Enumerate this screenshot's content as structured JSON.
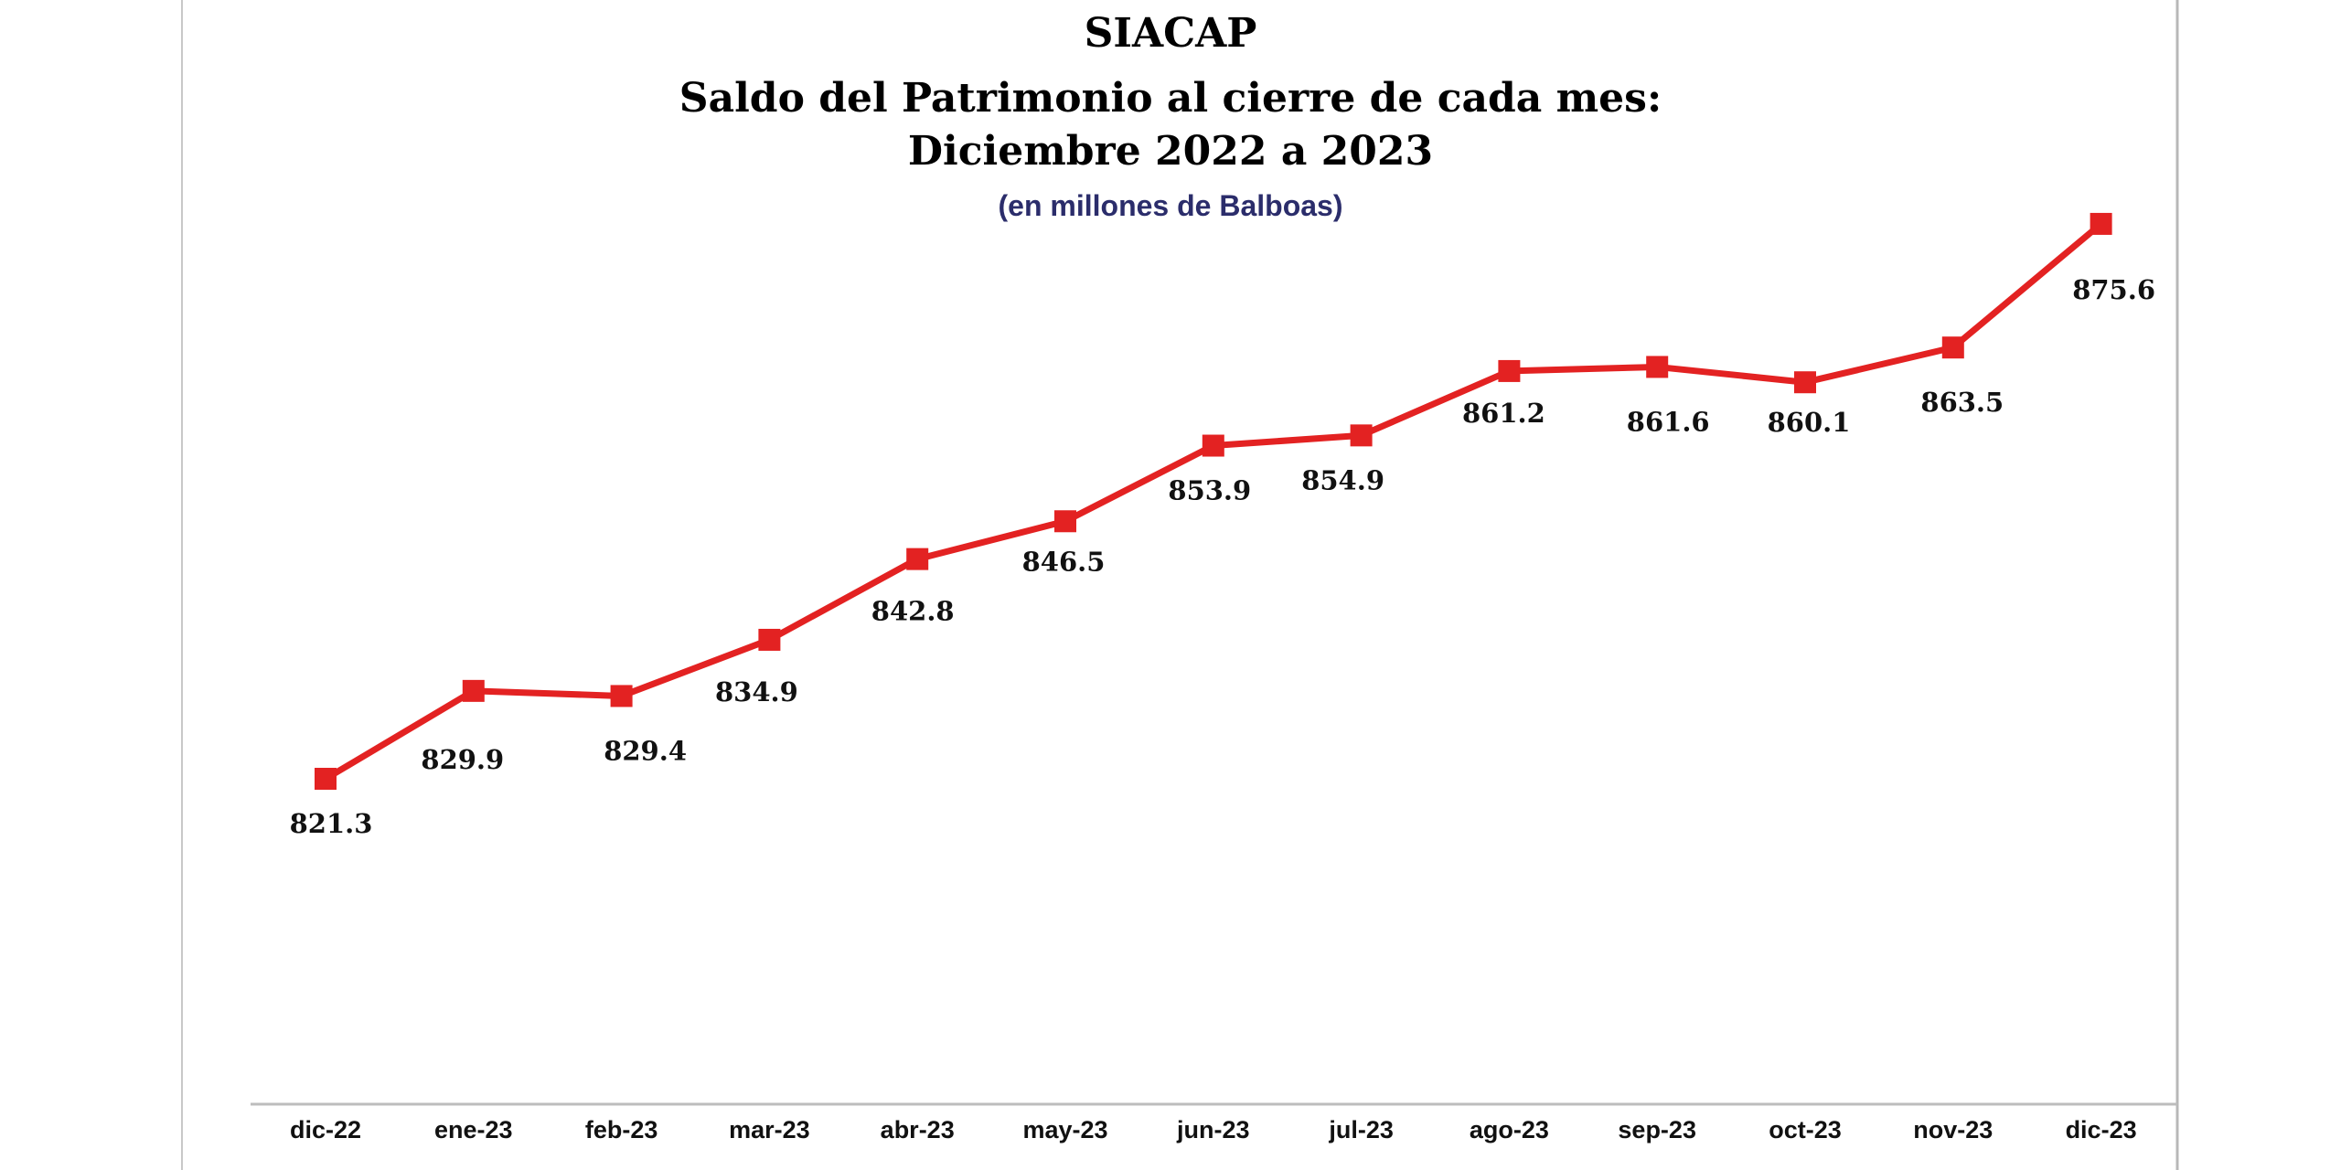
{
  "chart_data": {
    "type": "line",
    "title": "SIACAP",
    "title_lines": [
      "SIACAP",
      "Saldo del Patrimonio al cierre de cada mes:",
      "Diciembre 2022 a 2023"
    ],
    "subtitle": "(en millones de Balboas)",
    "xlabel": "",
    "ylabel": "",
    "categories": [
      "dic-22",
      "ene-23",
      "feb-23",
      "mar-23",
      "abr-23",
      "may-23",
      "jun-23",
      "jul-23",
      "ago-23",
      "sep-23",
      "oct-23",
      "nov-23",
      "dic-23"
    ],
    "series": [
      {
        "name": "Saldo del Patrimonio",
        "color": "#e32222",
        "values": [
          821.3,
          829.9,
          829.4,
          834.9,
          842.8,
          846.5,
          853.9,
          854.9,
          861.2,
          861.6,
          860.1,
          863.5,
          875.6
        ],
        "labels": [
          "821.3",
          "829.9",
          "829.4",
          "834.9",
          "842.8",
          "846.5",
          "853.9",
          "854.9",
          "861.2",
          "861.6",
          "860.1",
          "863.5",
          "875.6"
        ]
      }
    ],
    "grid": false,
    "legend": "none"
  }
}
